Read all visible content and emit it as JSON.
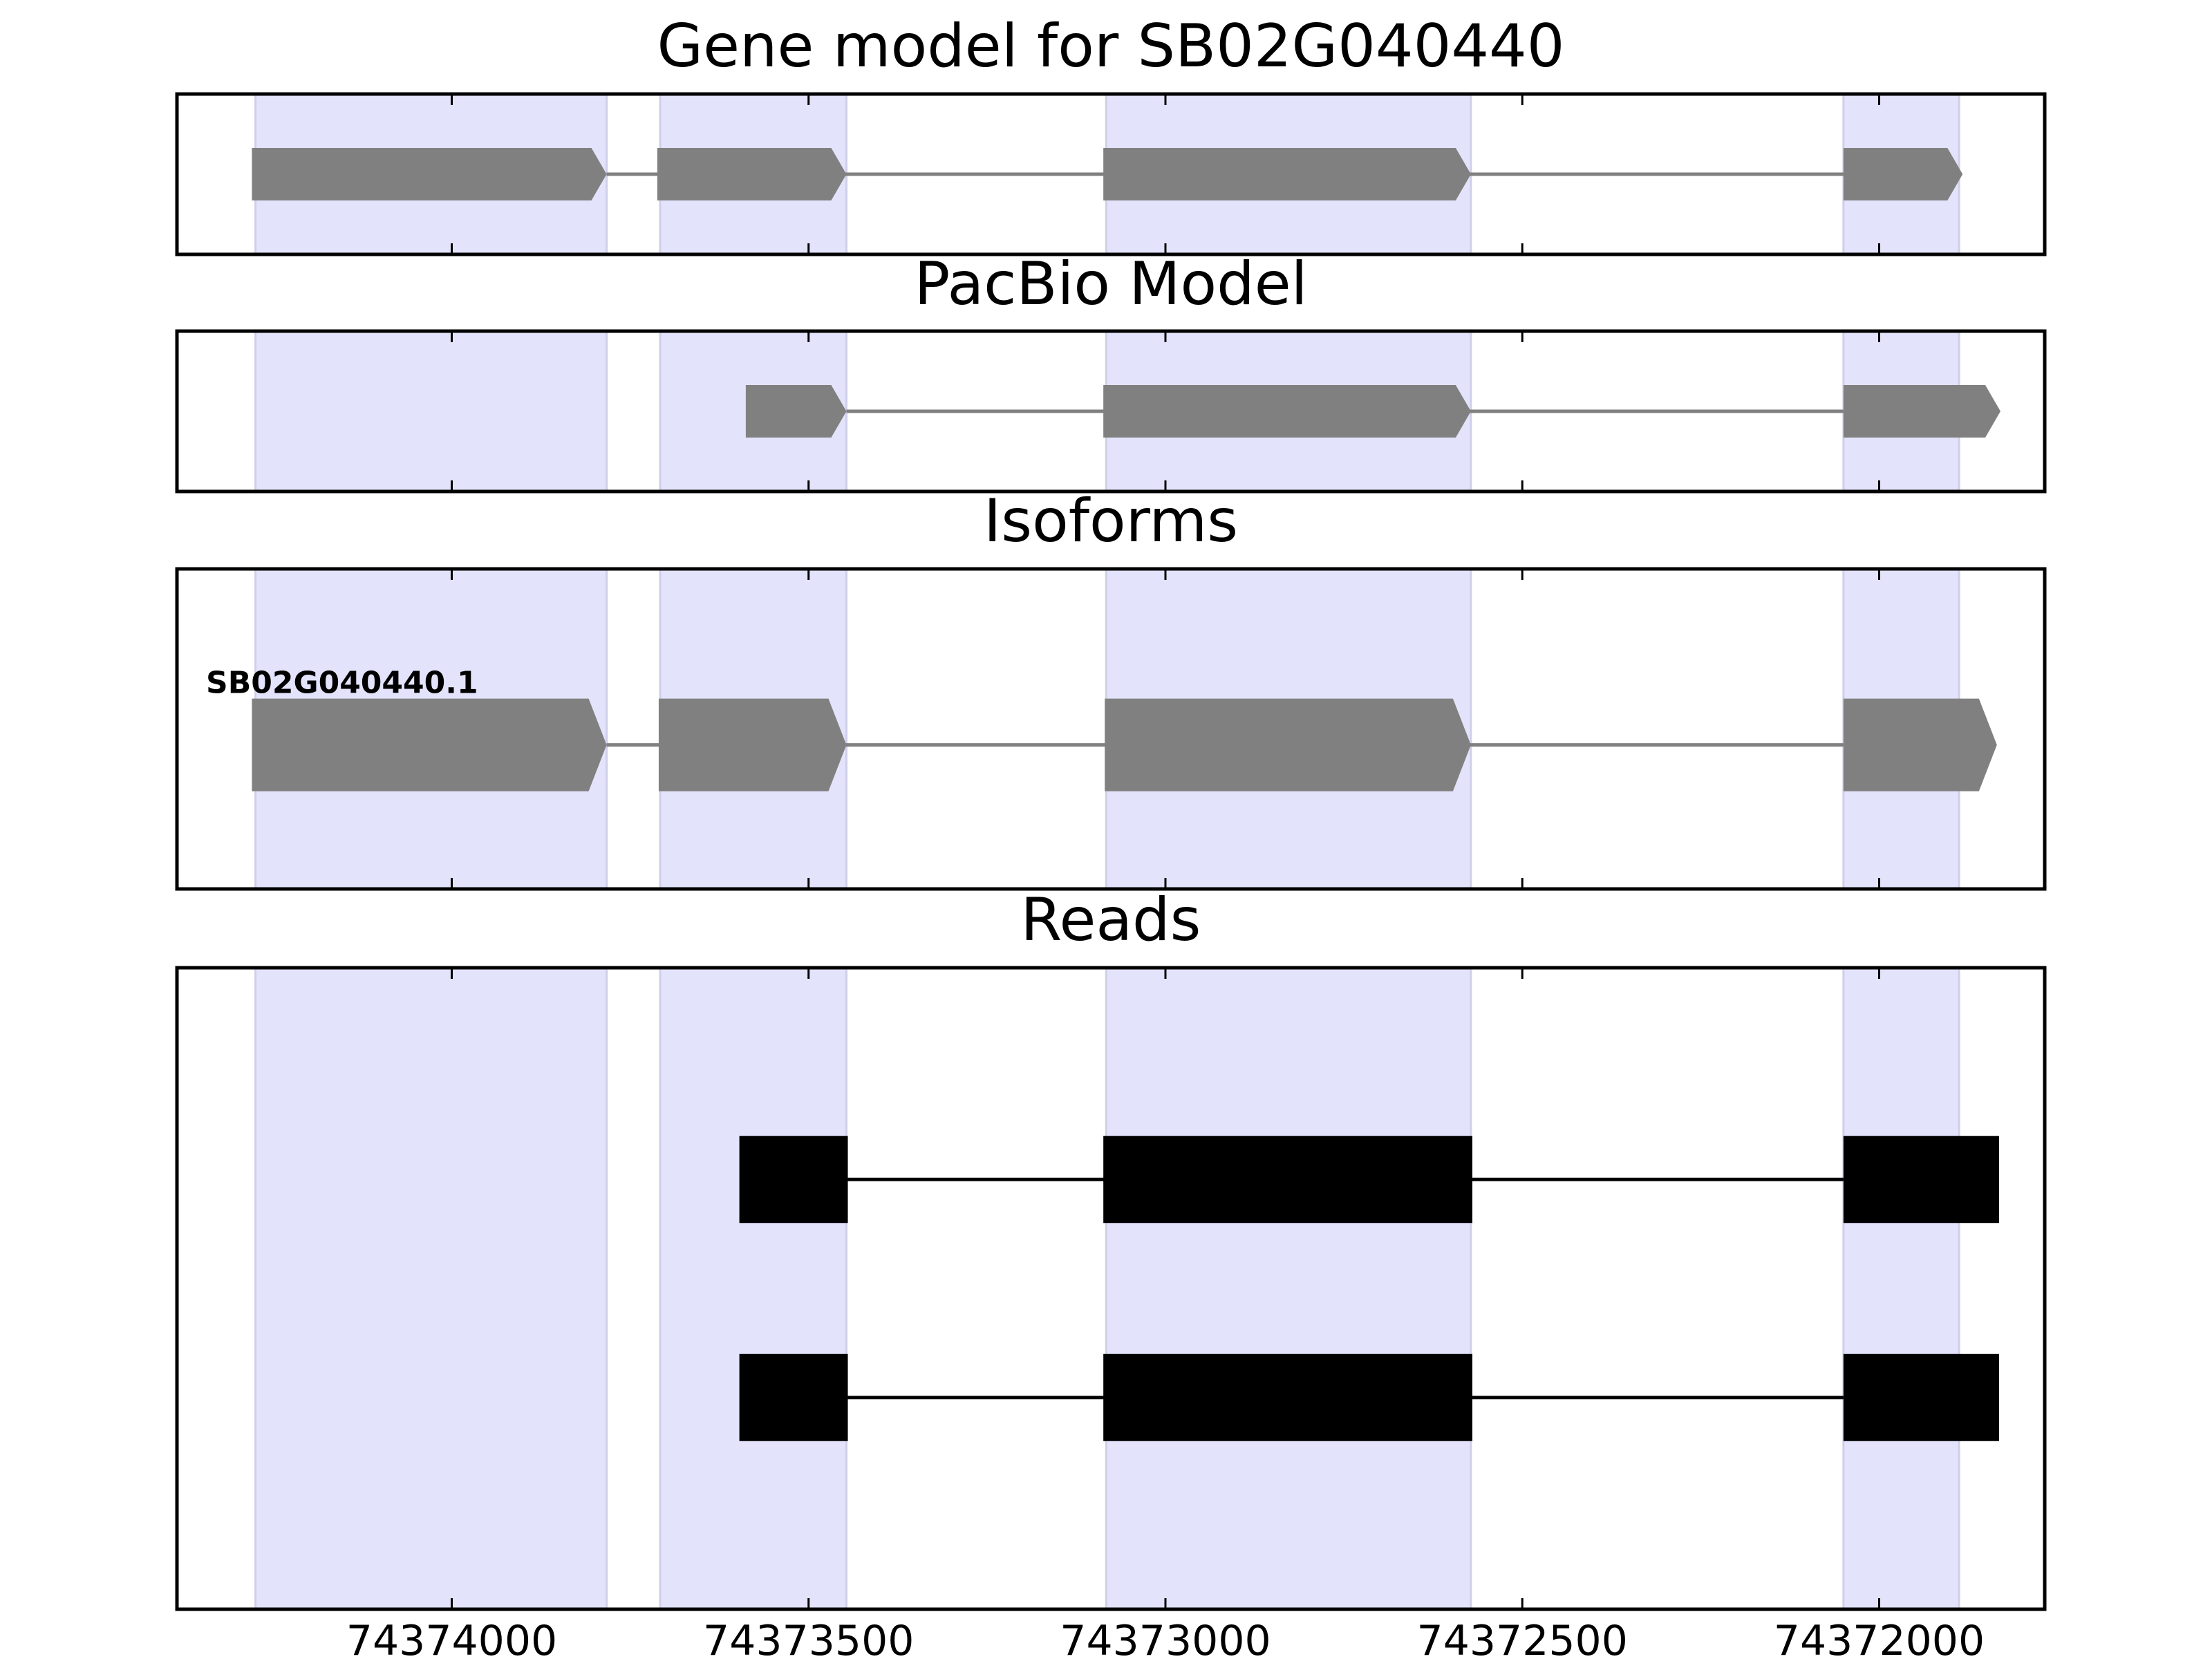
{
  "chart_data": {
    "type": "gene-structure",
    "x_axis": {
      "ticks": [
        74374000,
        74373500,
        74373000,
        74372500,
        74372000
      ],
      "tick_labels": [
        "74374000",
        "74373500",
        "74373000",
        "74372500",
        "74372000"
      ],
      "reversed": true
    },
    "exon_shading": {
      "color": "#e3e3fb",
      "regions": [
        [
          74374275,
          74373783
        ],
        [
          74373708,
          74373447
        ],
        [
          74373083,
          74372572
        ],
        [
          74372050,
          74371888
        ]
      ]
    },
    "panels": [
      {
        "id": "gene-model",
        "title": "Gene model for SB02G040440",
        "color": "#808080",
        "tracks": [
          {
            "label": "",
            "style": "arrow",
            "y_frac": 0.5,
            "exons": [
              [
                74374280,
                74373783
              ],
              [
                74373712,
                74373447
              ],
              [
                74373087,
                74372572
              ],
              [
                74372050,
                74371883
              ]
            ]
          }
        ]
      },
      {
        "id": "pacbio-model",
        "title": "PacBio Model",
        "color": "#808080",
        "tracks": [
          {
            "label": "",
            "style": "arrow",
            "y_frac": 0.5,
            "exons": [
              [
                74373588,
                74373447
              ],
              [
                74373087,
                74372572
              ],
              [
                74372050,
                74371830
              ]
            ]
          }
        ]
      },
      {
        "id": "isoforms",
        "title": "Isoforms",
        "color": "#808080",
        "tracks": [
          {
            "label": "SB02G040440.1",
            "style": "arrow",
            "y_frac": 0.55,
            "exons": [
              [
                74374280,
                74373783
              ],
              [
                74373710,
                74373447
              ],
              [
                74373085,
                74372572
              ],
              [
                74372050,
                74371835
              ]
            ]
          }
        ]
      },
      {
        "id": "reads",
        "title": "Reads",
        "color": "#000000",
        "tracks": [
          {
            "label": "",
            "style": "box",
            "y_frac": 0.33,
            "exons": [
              [
                74373597,
                74373445
              ],
              [
                74373087,
                74372570
              ],
              [
                74372050,
                74371832
              ]
            ]
          },
          {
            "label": "",
            "style": "box",
            "y_frac": 0.67,
            "exons": [
              [
                74373597,
                74373445
              ],
              [
                74373087,
                74372570
              ],
              [
                74372050,
                74371832
              ]
            ]
          }
        ]
      }
    ]
  }
}
